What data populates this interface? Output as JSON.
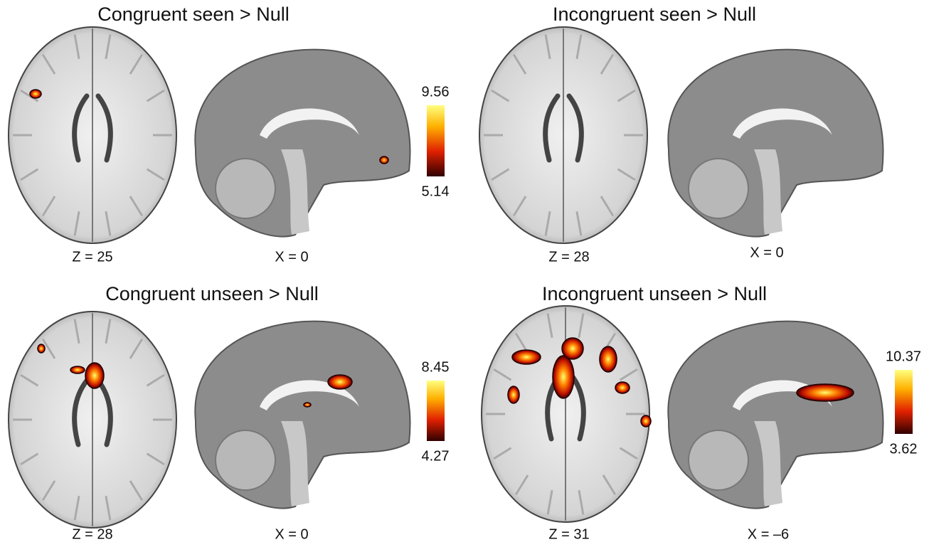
{
  "panels": [
    {
      "title": "Congruent seen > Null",
      "axial_label": "Z = 25",
      "sagittal_label": "X = 0",
      "colorbar": {
        "max": "9.56",
        "min": "5.14"
      }
    },
    {
      "title": "Incongruent seen > Null",
      "axial_label": "Z = 28",
      "sagittal_label": "X = 0"
    },
    {
      "title": "Congruent unseen > Null",
      "axial_label": "Z = 28",
      "sagittal_label": "X = 0",
      "colorbar": {
        "max": "8.45",
        "min": "4.27"
      }
    },
    {
      "title": "Incongruent unseen > Null",
      "axial_label": "Z = 31",
      "sagittal_label": "X = –6",
      "colorbar": {
        "max": "10.37",
        "min": "3.62"
      }
    }
  ]
}
